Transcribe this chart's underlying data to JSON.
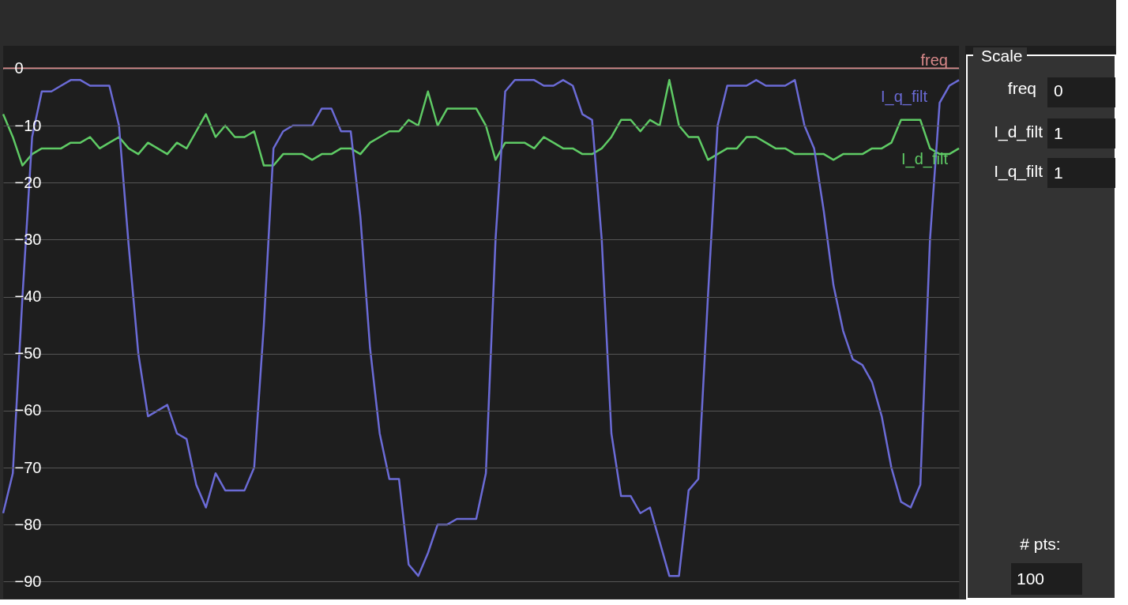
{
  "chart_data": {
    "type": "line",
    "categories": [
      null,
      null,
      null,
      null,
      null,
      null,
      null,
      null,
      null,
      null,
      null,
      null,
      null,
      null,
      null,
      null,
      null,
      null,
      null,
      null,
      null,
      null,
      null,
      null,
      null,
      null,
      null,
      null,
      null,
      null,
      null,
      null,
      null,
      null,
      null,
      null,
      null,
      null,
      null,
      null,
      null,
      null,
      null,
      null,
      null,
      null,
      null,
      null,
      null,
      null,
      null,
      null,
      null,
      null,
      null,
      null,
      null,
      null,
      null,
      null,
      null,
      null,
      null,
      null,
      null,
      null,
      null,
      null,
      null,
      null,
      null,
      null,
      null,
      null,
      null,
      null,
      null,
      null,
      null,
      null,
      null,
      null,
      null,
      null,
      null,
      null,
      null,
      null,
      null,
      null,
      null,
      null,
      null,
      null,
      null,
      null,
      null,
      null,
      null,
      null
    ],
    "series": [
      {
        "name": "freq",
        "color": "#d9898a",
        "values": [
          0,
          0,
          0,
          0,
          0,
          0,
          0,
          0,
          0,
          0,
          0,
          0,
          0,
          0,
          0,
          0,
          0,
          0,
          0,
          0,
          0,
          0,
          0,
          0,
          0,
          0,
          0,
          0,
          0,
          0,
          0,
          0,
          0,
          0,
          0,
          0,
          0,
          0,
          0,
          0,
          0,
          0,
          0,
          0,
          0,
          0,
          0,
          0,
          0,
          0,
          0,
          0,
          0,
          0,
          0,
          0,
          0,
          0,
          0,
          0,
          0,
          0,
          0,
          0,
          0,
          0,
          0,
          0,
          0,
          0,
          0,
          0,
          0,
          0,
          0,
          0,
          0,
          0,
          0,
          0,
          0,
          0,
          0,
          0,
          0,
          0,
          0,
          0,
          0,
          0,
          0,
          0,
          0,
          0,
          0,
          0,
          0,
          0,
          0,
          0
        ]
      },
      {
        "name": "I_d_filt",
        "color": "#5fcb65",
        "values": [
          -8,
          -12,
          -17,
          -15,
          -14,
          -14,
          -14,
          -13,
          -13,
          -12,
          -14,
          -13,
          -12,
          -14,
          -15,
          -13,
          -14,
          -15,
          -13,
          -14,
          -11,
          -8,
          -12,
          -10,
          -12,
          -12,
          -11,
          -17,
          -17,
          -15,
          -15,
          -15,
          -16,
          -15,
          -15,
          -14,
          -14,
          -15,
          -13,
          -12,
          -11,
          -11,
          -9,
          -10,
          -4,
          -10,
          -7,
          -7,
          -7,
          -7,
          -10,
          -16,
          -13,
          -13,
          -13,
          -14,
          -12,
          -13,
          -14,
          -14,
          -15,
          -15,
          -14,
          -12,
          -9,
          -9,
          -11,
          -9,
          -10,
          -2,
          -10,
          -12,
          -12,
          -16,
          -15,
          -14,
          -14,
          -12,
          -12,
          -13,
          -14,
          -14,
          -15,
          -15,
          -15,
          -15,
          -16,
          -15,
          -15,
          -15,
          -14,
          -14,
          -13,
          -9,
          -9,
          -9,
          -14,
          -15,
          -15,
          -14
        ]
      },
      {
        "name": "I_q_filt",
        "color": "#6b6bd6",
        "values": [
          -78,
          -71,
          -40,
          -12,
          -4,
          -4,
          -3,
          -2,
          -2,
          -3,
          -3,
          -3,
          -10,
          -31,
          -50,
          -61,
          -60,
          -59,
          -64,
          -65,
          -73,
          -77,
          -71,
          -74,
          -74,
          -74,
          -70,
          -45,
          -14,
          -11,
          -10,
          -10,
          -10,
          -7,
          -7,
          -11,
          -11,
          -26,
          -49,
          -64,
          -72,
          -72,
          -87,
          -89,
          -85,
          -80,
          -80,
          -79,
          -79,
          -79,
          -71,
          -30,
          -4,
          -2,
          -2,
          -2,
          -3,
          -3,
          -2,
          -3,
          -8,
          -9,
          -30,
          -64,
          -75,
          -75,
          -78,
          -77,
          -83,
          -89,
          -89,
          -74,
          -72,
          -40,
          -10,
          -3,
          -3,
          -3,
          -2,
          -3,
          -3,
          -3,
          -2,
          -10,
          -14,
          -25,
          -38,
          -46,
          -51,
          -52,
          -55,
          -61,
          -70,
          -76,
          -77,
          -73,
          -30,
          -6,
          -3,
          -2
        ]
      }
    ],
    "ylim": [
      -93,
      4
    ],
    "yticks": [
      0,
      -10,
      -20,
      -30,
      -40,
      -50,
      -60,
      -70,
      -80,
      -90
    ],
    "grid": "y",
    "legend": false,
    "tick_labels": "y",
    "annotations": [
      "Scale",
      "freq",
      "0",
      "I_d_filt",
      "1",
      "I_q_filt",
      "1",
      "# pts:",
      "100"
    ]
  }
}
